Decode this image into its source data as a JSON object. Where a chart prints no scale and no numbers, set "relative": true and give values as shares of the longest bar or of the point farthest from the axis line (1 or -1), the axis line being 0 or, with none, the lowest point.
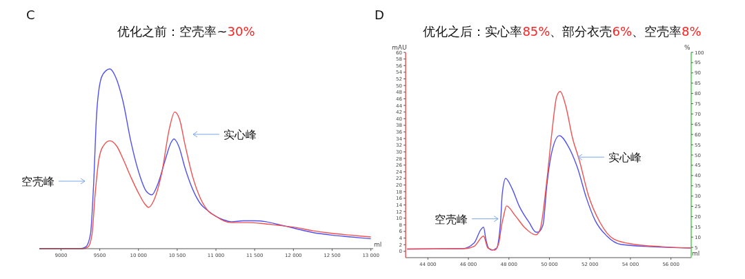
{
  "chart_data": [
    {
      "type": "line",
      "title": "优化之前：空壳率~30%",
      "xlabel": "ml",
      "relative": true,
      "xlim": [
        8720,
        13030
      ],
      "xticks": [
        {
          "value": 9000,
          "label": "9000"
        },
        {
          "value": 9500,
          "label": "9500"
        },
        {
          "value": 10000,
          "label": "10 000"
        },
        {
          "value": 10500,
          "label": "10 500"
        },
        {
          "value": 11000,
          "label": "11 000"
        },
        {
          "value": 11500,
          "label": "11 500"
        },
        {
          "value": 12000,
          "label": "12 000"
        },
        {
          "value": 12500,
          "label": "12 500"
        },
        {
          "value": 13000,
          "label": "13 000"
        }
      ],
      "grid": false,
      "tick_labels": "x",
      "annotations": [
        "C",
        "空壳峰",
        "实心峰"
      ],
      "series": [
        {
          "color": "#5050f0",
          "x": [
            8720,
            9250,
            9320,
            9380,
            9420,
            9460,
            9520,
            9580,
            9631,
            9700,
            9800,
            9900,
            10000,
            10100,
            10173,
            10250,
            10350,
            10420,
            10458,
            10520,
            10600,
            10700,
            10800,
            10900,
            11000,
            11100,
            11200,
            11350,
            11500,
            11650,
            11800,
            12000,
            12250,
            12500,
            12750,
            13000
          ],
          "values": [
            0,
            0,
            0.01,
            0.08,
            0.35,
            0.75,
            0.95,
            0.99,
            1,
            0.96,
            0.82,
            0.6,
            0.43,
            0.32,
            0.3,
            0.36,
            0.5,
            0.59,
            0.61,
            0.57,
            0.45,
            0.33,
            0.25,
            0.21,
            0.18,
            0.16,
            0.15,
            0.155,
            0.155,
            0.15,
            0.135,
            0.115,
            0.09,
            0.075,
            0.065,
            0.055
          ]
        },
        {
          "color": "#f05050",
          "x": [
            8720,
            9280,
            9350,
            9400,
            9440,
            9490,
            9560,
            9631,
            9720,
            9800,
            9900,
            10000,
            10080,
            10129,
            10200,
            10300,
            10400,
            10467,
            10530,
            10600,
            10700,
            10800,
            10900,
            11000,
            11100,
            11200,
            11400,
            11600,
            11800,
            12000,
            12250,
            12500,
            12750,
            13000
          ],
          "values": [
            0,
            0,
            0.01,
            0.08,
            0.3,
            0.5,
            0.58,
            0.6,
            0.57,
            0.5,
            0.4,
            0.31,
            0.25,
            0.23,
            0.27,
            0.42,
            0.67,
            0.76,
            0.72,
            0.58,
            0.4,
            0.28,
            0.21,
            0.18,
            0.155,
            0.145,
            0.145,
            0.14,
            0.13,
            0.12,
            0.1,
            0.085,
            0.075,
            0.065
          ]
        }
      ]
    },
    {
      "type": "line",
      "title": "优化之后：实心率85%、部分衣壳6%、空壳率8%",
      "xlabel": "ml",
      "ylabel": "mAU",
      "y2label": "%",
      "xlim": [
        42900,
        57000
      ],
      "xticks": [
        {
          "value": 44000,
          "label": "44 000"
        },
        {
          "value": 46000,
          "label": "46 000"
        },
        {
          "value": 48000,
          "label": "48 000"
        },
        {
          "value": 50000,
          "label": "50 000"
        },
        {
          "value": 52000,
          "label": "52 000"
        },
        {
          "value": 54000,
          "label": "54 000"
        },
        {
          "value": 56000,
          "label": "56 000"
        }
      ],
      "ylim": [
        -1.9,
        60
      ],
      "yticks": [
        0,
        2,
        4,
        6,
        8,
        10,
        12,
        14,
        16,
        18,
        20,
        22,
        24,
        26,
        28,
        30,
        32,
        34,
        36,
        38,
        40,
        42,
        44,
        46,
        48,
        50,
        52,
        54,
        56,
        58,
        60
      ],
      "y2lim": [
        0,
        100
      ],
      "y2ticks": [
        5,
        10,
        15,
        20,
        25,
        30,
        35,
        40,
        45,
        50,
        55,
        60,
        65,
        70,
        75,
        80,
        85,
        90,
        95,
        100
      ],
      "grid": false,
      "annotations": [
        "D",
        {
          "text": "空壳峰",
          "x": 47470,
          "y": 9.8
        },
        {
          "text": "实心峰",
          "x": 51410,
          "y": 28.4
        }
      ],
      "series": [
        {
          "color": "#5050f0",
          "x": [
            42980,
            45700,
            46280,
            46620,
            46750,
            46860,
            46990,
            47160,
            47400,
            47500,
            47600,
            47670,
            47840,
            48150,
            48520,
            49000,
            49340,
            49440,
            49680,
            49880,
            50120,
            50490,
            50900,
            51380,
            51820,
            52260,
            52840,
            53520,
            54990,
            57000
          ],
          "values": [
            0.7,
            0.8,
            2.5,
            6.6,
            7.3,
            3.7,
            1,
            0.4,
            1,
            3.7,
            10,
            17.2,
            22,
            19,
            13.5,
            8.7,
            5.8,
            5.8,
            7.9,
            20.3,
            30,
            34.9,
            32,
            25.3,
            16.2,
            9.3,
            4.6,
            2.1,
            1.4,
            1
          ]
        },
        {
          "color": "#f05050",
          "x": [
            42980,
            45800,
            46280,
            46750,
            46960,
            47300,
            47500,
            47640,
            47740,
            47880,
            48320,
            48760,
            49200,
            49340,
            49540,
            49880,
            50120,
            50360,
            50530,
            50800,
            51140,
            51480,
            51920,
            52500,
            53180,
            54200,
            55560,
            57000
          ],
          "values": [
            0.7,
            0.8,
            1.5,
            4.6,
            1,
            0.4,
            2.5,
            7.9,
            10.7,
            13.7,
            10.7,
            7.3,
            5.2,
            5,
            6.6,
            21.8,
            35.7,
            46.7,
            48.2,
            44,
            34.2,
            27.4,
            17,
            8.7,
            3.7,
            2.1,
            1.4,
            1
          ]
        }
      ]
    }
  ]
}
